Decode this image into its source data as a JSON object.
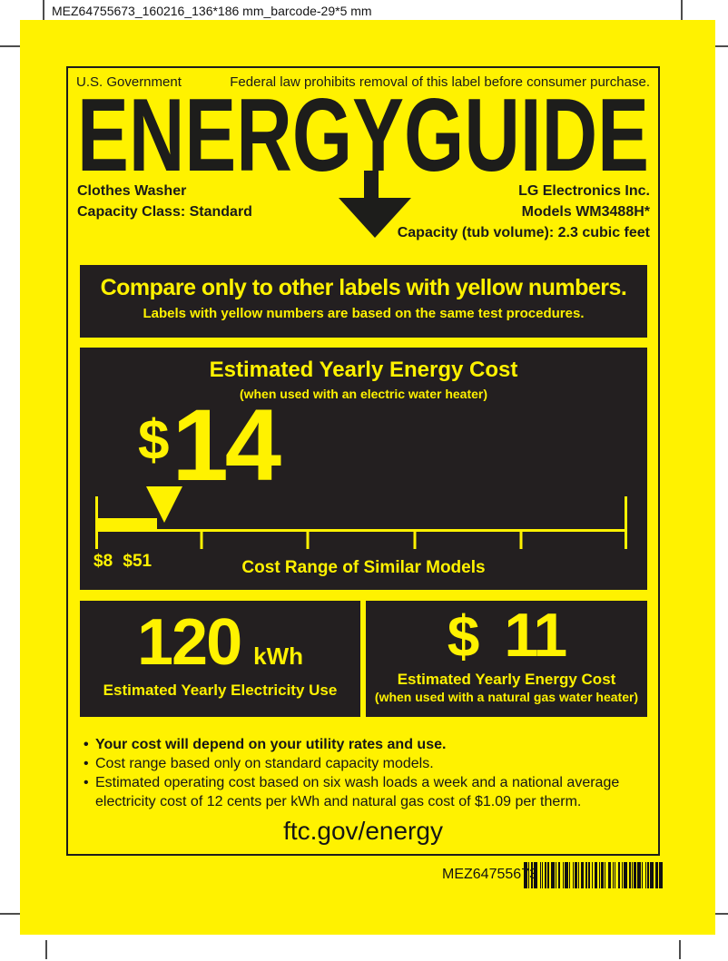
{
  "meta": {
    "filename": "MEZ64755673_160216_136*186 mm_barcode-29*5 mm"
  },
  "header": {
    "government": "U.S. Government",
    "federal_notice": "Federal law prohibits removal of this label before consumer purchase."
  },
  "logo": {
    "text": "ENERGYGUIDE"
  },
  "product": {
    "type": "Clothes Washer",
    "capacity_class": "Capacity Class: Standard",
    "manufacturer": "LG Electronics Inc.",
    "models": "Models WM3488H*",
    "capacity": "Capacity (tub volume): 2.3 cubic feet"
  },
  "compare": {
    "headline": "Compare only to other labels with yellow numbers.",
    "subline": "Labels with yellow numbers are based on the same test procedures."
  },
  "energy_cost": {
    "title": "Estimated Yearly Energy Cost",
    "subtitle": "(when used with an electric water heater)",
    "currency": "$",
    "value": "14",
    "range_min_label": "$8",
    "range_max_label": "$51",
    "range_caption": "Cost Range of Similar Models"
  },
  "electricity": {
    "value": "120",
    "unit": "kWh",
    "caption": "Estimated Yearly Electricity Use"
  },
  "gas_cost": {
    "currency": "$",
    "value": "11",
    "caption": "Estimated Yearly Energy Cost",
    "subcaption": "(when used with a natural gas water heater)"
  },
  "footnotes": [
    {
      "text": "Your cost will depend on your utility rates and use."
    },
    {
      "text": "Cost range based only on standard capacity models."
    },
    {
      "line1": "Estimated operating cost based on six wash loads a week and a national average",
      "line2": "electricity cost of 12 cents per kWh and natural gas cost of $1.09 per therm."
    }
  ],
  "footer": {
    "url": "ftc.gov/energy"
  },
  "bottom": {
    "part_number": "MEZ64755673",
    "barcode_bars": [
      3,
      1,
      1,
      1,
      2,
      1,
      3,
      2,
      1,
      1,
      1,
      1,
      2,
      1,
      1,
      2,
      3,
      1,
      1,
      1,
      2,
      2,
      1,
      1,
      3,
      1,
      1,
      2,
      1,
      1,
      2,
      1,
      1,
      1,
      3,
      1,
      2,
      1,
      1,
      2,
      1,
      1,
      3,
      1,
      1,
      1,
      2,
      1,
      1,
      2,
      3,
      1,
      1,
      1,
      1,
      2,
      2,
      1,
      1,
      1,
      3,
      2,
      1,
      1,
      1,
      1,
      2,
      1,
      3,
      1,
      1,
      2,
      1,
      1,
      1,
      1,
      3,
      2,
      2,
      1,
      3
    ]
  },
  "colors": {
    "label_yellow": "#FFF200",
    "panel_black": "#231F20",
    "print_black": "#1D1D1B"
  }
}
